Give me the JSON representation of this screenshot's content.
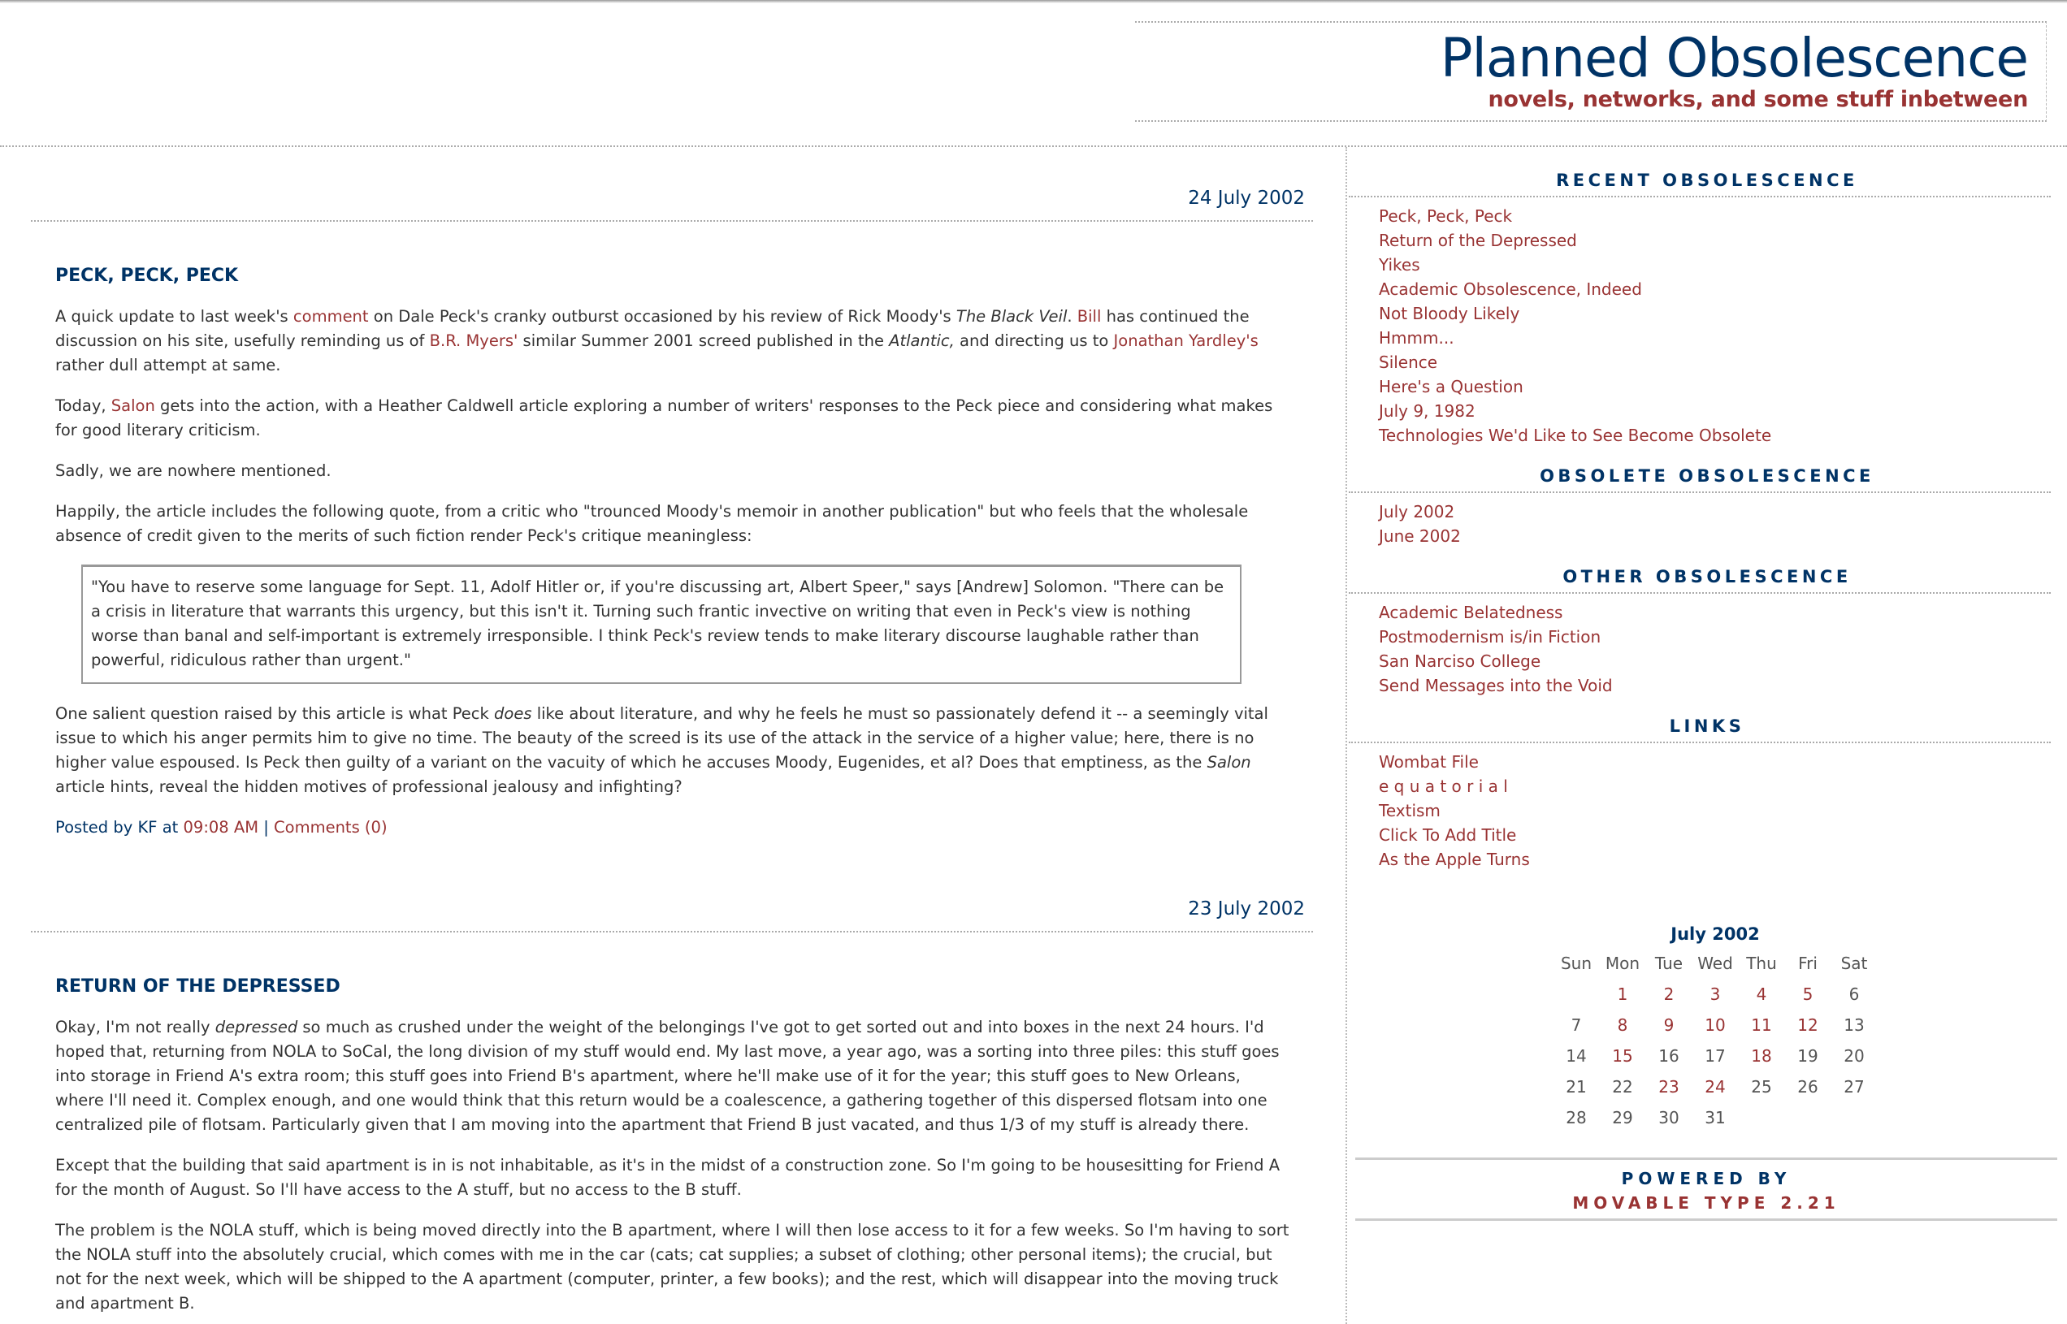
{
  "header": {
    "title": "Planned Obsolescence",
    "subtitle": "novels, networks, and some stuff inbetween"
  },
  "colors": {
    "navy": "#003366",
    "link": "#993333",
    "text": "#333333"
  },
  "posts": [
    {
      "date": "24 July 2002",
      "title": "PECK, PECK, PECK",
      "paragraphs": [
        [
          {
            "t": "A quick update to last week's "
          },
          {
            "t": "comment",
            "link": true
          },
          {
            "t": " on Dale Peck's cranky outburst occasioned by his review of Rick Moody's "
          },
          {
            "t": "The Black Veil",
            "em": true
          },
          {
            "t": ". "
          },
          {
            "t": "Bill",
            "link": true
          },
          {
            "t": " has continued the discussion on his site, usefully reminding us of "
          },
          {
            "t": "B.R. Myers'",
            "link": true
          },
          {
            "t": " similar Summer 2001 screed published in the "
          },
          {
            "t": "Atlantic,",
            "em": true
          },
          {
            "t": " and directing us to "
          },
          {
            "t": "Jonathan Yardley's",
            "link": true
          },
          {
            "t": " rather dull attempt at same."
          }
        ],
        [
          {
            "t": "Today, "
          },
          {
            "t": "Salon",
            "link": true
          },
          {
            "t": " gets into the action, with a Heather Caldwell article exploring a number of writers' responses to the Peck piece and considering what makes for good literary criticism."
          }
        ],
        [
          {
            "t": "Sadly, we are nowhere mentioned."
          }
        ],
        [
          {
            "t": "Happily, the article includes the following quote, from a critic who \"trounced Moody's memoir in another publication\" but who feels that the wholesale absence of credit given to the merits of such fiction render Peck's critique meaningless:"
          }
        ]
      ],
      "quote": "\"You have to reserve some language for Sept. 11, Adolf Hitler or, if you're discussing art, Albert Speer,\" says [Andrew] Solomon. \"There can be a crisis in literature that warrants this urgency, but this isn't it. Turning such frantic invective on writing that even in Peck's view is nothing worse than banal and self-important is extremely irresponsible. I think Peck's review tends to make literary discourse laughable rather than powerful, ridiculous rather than urgent.\"",
      "after": [
        [
          {
            "t": "One salient question raised by this article is what Peck "
          },
          {
            "t": "does",
            "em": true
          },
          {
            "t": " like about literature, and why he feels he must so passionately defend it -- a seemingly vital issue to which his anger permits him to give no time. The beauty of the screed is its use of the attack in the service of a higher value; here, there is no higher value espoused. Is Peck then guilty of a variant on the vacuity of which he accuses Moody, Eugenides, et al? Does that emptiness, as the "
          },
          {
            "t": "Salon",
            "em": true
          },
          {
            "t": " article hints, reveal the hidden motives of professional jealousy and infighting?"
          }
        ]
      ],
      "posted_prefix": "Posted by KF at ",
      "time": "09:08 AM",
      "sep": " | ",
      "comments": "Comments (0)"
    },
    {
      "date": "23 July 2002",
      "title": "RETURN OF THE DEPRESSED",
      "paragraphs": [
        [
          {
            "t": "Okay, I'm not really "
          },
          {
            "t": "depressed",
            "em": true
          },
          {
            "t": " so much as crushed under the weight of the belongings I've got to get sorted out and into boxes in the next 24 hours. I'd hoped that, returning from NOLA to SoCal, the long division of my stuff would end. My last move, a year ago, was a sorting into three piles: this stuff goes into storage in Friend A's extra room; this stuff goes into Friend B's apartment, where he'll make use of it for the year; this stuff goes to New Orleans, where I'll need it. Complex enough, and one would think that this return would be a coalescence, a gathering together of this dispersed flotsam into one centralized pile of flotsam. Particularly given that I am moving into the apartment that Friend B just vacated, and thus 1/3 of my stuff is already there."
          }
        ],
        [
          {
            "t": "Except that the building that said apartment is in is not inhabitable, as it's in the midst of a construction zone. So I'm going to be housesitting for Friend A for the month of August. So I'll have access to the A stuff, but no access to the B stuff."
          }
        ],
        [
          {
            "t": "The problem is the NOLA stuff, which is being moved directly into the B apartment, where I will then lose access to it for a few weeks. So I'm having to sort the NOLA stuff into the absolutely crucial, which comes with me in the car (cats; cat supplies; a subset of clothing; other personal items); the crucial, but not for the next week, which will be shipped to the A apartment (computer, printer, a few books); and the rest, which will disappear into the moving truck and apartment B."
          }
        ]
      ]
    }
  ],
  "sidebar": {
    "recent": {
      "heading": "RECENT OBSOLESCENCE",
      "items": [
        "Peck, Peck, Peck",
        "Return of the Depressed",
        "Yikes",
        "Academic Obsolescence, Indeed",
        "Not Bloody Likely",
        "Hmmm...",
        "Silence",
        "Here's a Question",
        "July 9, 1982",
        "Technologies We'd Like to See Become Obsolete"
      ]
    },
    "archives": {
      "heading": "OBSOLETE OBSOLESCENCE",
      "items": [
        "July 2002",
        "June 2002"
      ]
    },
    "other": {
      "heading": "OTHER OBSOLESCENCE",
      "items": [
        "Academic Belatedness",
        "Postmodernism is/in Fiction",
        "San Narciso College",
        "Send Messages into the Void"
      ]
    },
    "links": {
      "heading": "LINKS",
      "items": [
        "Wombat File",
        "e q u a t o r i a l",
        "Textism",
        "Click To Add Title",
        "As the Apple Turns"
      ]
    },
    "calendar": {
      "title": "July 2002",
      "days": [
        "Sun",
        "Mon",
        "Tue",
        "Wed",
        "Thu",
        "Fri",
        "Sat"
      ],
      "weeks": [
        [
          "",
          "1",
          "2",
          "3",
          "4",
          "5",
          "6"
        ],
        [
          "7",
          "8",
          "9",
          "10",
          "11",
          "12",
          "13"
        ],
        [
          "14",
          "15",
          "16",
          "17",
          "18",
          "19",
          "20"
        ],
        [
          "21",
          "22",
          "23",
          "24",
          "25",
          "26",
          "27"
        ],
        [
          "28",
          "29",
          "30",
          "31",
          "",
          "",
          ""
        ]
      ],
      "linked": [
        "1",
        "2",
        "3",
        "4",
        "5",
        "8",
        "9",
        "10",
        "11",
        "12",
        "15",
        "18",
        "23",
        "24"
      ]
    },
    "powered": {
      "line1": "POWERED BY",
      "line2": "MOVABLE TYPE 2.21"
    }
  }
}
